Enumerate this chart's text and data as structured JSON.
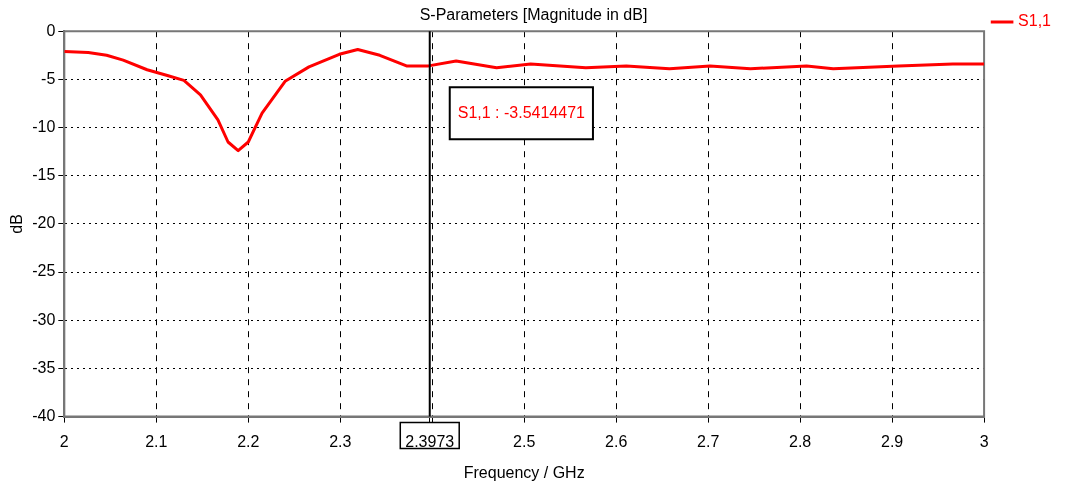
{
  "chart_data": {
    "type": "line",
    "title": "S-Parameters [Magnitude in dB]",
    "xlabel": "Frequency / GHz",
    "ylabel": "dB",
    "x": [
      2.0,
      2.026,
      2.046,
      2.064,
      2.09,
      2.112,
      2.13,
      2.148,
      2.167,
      2.178,
      2.189,
      2.2,
      2.215,
      2.24,
      2.266,
      2.299,
      2.319,
      2.343,
      2.372,
      2.396,
      2.426,
      2.47,
      2.507,
      2.567,
      2.611,
      2.658,
      2.702,
      2.746,
      2.807,
      2.836,
      2.907,
      2.966,
      3.0
    ],
    "series": [
      {
        "name": "S1,1",
        "color": "#ff0000",
        "values": [
          -2.1,
          -2.2,
          -2.5,
          -3.0,
          -4.0,
          -4.6,
          -5.1,
          -6.6,
          -9.2,
          -11.5,
          -12.4,
          -11.5,
          -8.5,
          -5.2,
          -3.7,
          -2.4,
          -1.9,
          -2.5,
          -3.6,
          -3.6,
          -3.1,
          -3.8,
          -3.4,
          -3.8,
          -3.6,
          -3.9,
          -3.6,
          -3.9,
          -3.6,
          -3.9,
          -3.6,
          -3.4,
          -3.4
        ]
      }
    ],
    "xlim": [
      2,
      3
    ],
    "xticks": [
      2,
      2.1,
      2.2,
      2.3,
      {
        "value": 2.3973,
        "label": "2.3973"
      },
      {
        "value": 2.4,
        "label": null
      },
      2.5,
      2.6,
      2.7,
      2.8,
      2.9,
      3
    ],
    "ylim": [
      -40,
      0
    ],
    "yticks": [
      -40,
      -35,
      -30,
      -25,
      -20,
      -15,
      -10,
      -5,
      0
    ],
    "ref_lines": [
      {
        "axis": "x",
        "value": 2.3973,
        "color": "#000000"
      }
    ],
    "annotations": [
      {
        "text": "S1,1 : -3.5414471",
        "x": 2.3973,
        "y": -3.5414471
      }
    ],
    "grid": true,
    "legend": "top right",
    "marker": "none",
    "line_style": "solid"
  }
}
